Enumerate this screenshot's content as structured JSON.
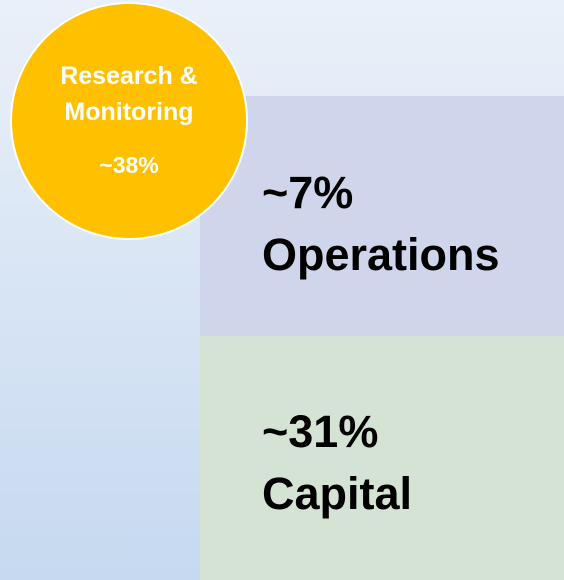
{
  "circle": {
    "label_lines": [
      "Research &",
      "Monitoring"
    ],
    "share": "~38%"
  },
  "boxes": [
    {
      "share": "~7%",
      "label": "Operations"
    },
    {
      "share": "~31%",
      "label": "Capital"
    }
  ]
}
